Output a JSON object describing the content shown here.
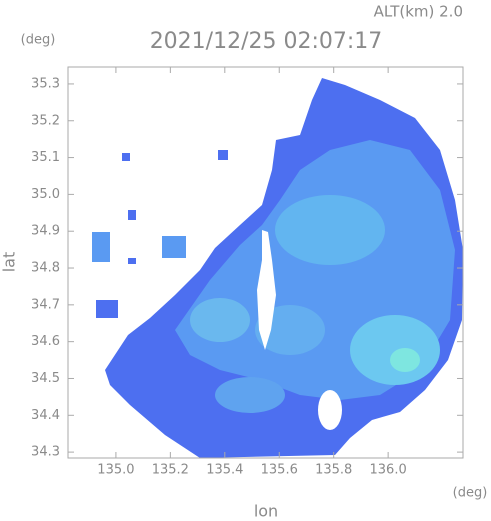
{
  "chart_data": {
    "type": "radar-map",
    "title": "2021/12/25 02:07:17",
    "annotation": "ALT(km) 2.0",
    "y_unit": "(deg)",
    "x_unit": "(deg)",
    "x_label": "lon",
    "y_label": "lat",
    "xlim": [
      134.824,
      136.275
    ],
    "ylim": [
      34.284,
      35.346
    ],
    "xticks": [
      {
        "value": 135,
        "label": "135.0"
      },
      135.2,
      135.4,
      135.6,
      135.8,
      {
        "value": 136,
        "label": "136.0"
      }
    ],
    "yticks": [
      35.3,
      35.2,
      35.1,
      {
        "value": 35,
        "label": "35.0"
      },
      34.9,
      34.8,
      34.7,
      34.6,
      34.5,
      34.4,
      34.3
    ]
  }
}
